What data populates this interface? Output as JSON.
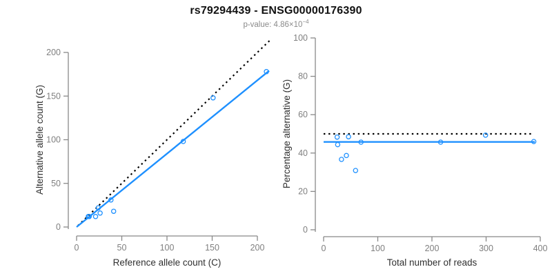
{
  "header": {
    "title": "rs79294439 - ENSG00000176390",
    "subtitle_main": "p-value: 4.86×10",
    "subtitle_exp": "−4"
  },
  "colors": {
    "accent_blue": "#1E90FF",
    "identity_black": "#000000",
    "axis_gray": "#888888",
    "tick_label_gray": "#7f7f7f",
    "axis_title_dark": "#303030",
    "title_black": "#111111",
    "subtitle_gray": "#8a8a8a"
  },
  "chart_data": [
    {
      "type": "scatter",
      "name": "allele-counts-scatter",
      "xlabel": "Reference allele count (C)",
      "ylabel": "Alternative allele count (G)",
      "xlim": [
        0,
        200
      ],
      "ylim": [
        0,
        200
      ],
      "xticks": [
        0,
        50,
        100,
        150,
        200
      ],
      "yticks": [
        0,
        50,
        100,
        150,
        200
      ],
      "grid": false,
      "legend": "none",
      "marker": {
        "shape": "open-circle",
        "color": "#1E90FF"
      },
      "points": [
        [
          13,
          12
        ],
        [
          14,
          12
        ],
        [
          21,
          12
        ],
        [
          24,
          22
        ],
        [
          26,
          16
        ],
        [
          38,
          31
        ],
        [
          41,
          18
        ],
        [
          118,
          98
        ],
        [
          151,
          148
        ],
        [
          210,
          178
        ]
      ],
      "lines": [
        {
          "label": "identity-line",
          "dash": "dotted",
          "color": "#000000",
          "from": [
            1.5,
            1.5
          ],
          "to": [
            214,
            214
          ]
        },
        {
          "label": "regression-line",
          "dash": "solid",
          "color": "#1E90FF",
          "from": [
            0,
            0
          ],
          "to": [
            213,
            179
          ]
        }
      ]
    },
    {
      "type": "scatter",
      "name": "percentage-vs-reads-scatter",
      "xlabel": "Total number of reads",
      "ylabel": "Percentage alternative (G)",
      "xlim": [
        0,
        400
      ],
      "ylim": [
        0,
        100
      ],
      "xticks": [
        0,
        100,
        200,
        300,
        400
      ],
      "yticks": [
        0,
        20,
        40,
        60,
        80,
        100
      ],
      "grid": false,
      "legend": "none",
      "marker": {
        "shape": "open-circle",
        "color": "#1E90FF"
      },
      "points": [
        [
          25,
          48.3
        ],
        [
          26,
          44.4
        ],
        [
          33,
          36.7
        ],
        [
          42,
          38.7
        ],
        [
          46,
          48.5
        ],
        [
          59,
          30.9
        ],
        [
          69,
          45.7
        ],
        [
          216,
          45.7
        ],
        [
          299,
          49.3
        ],
        [
          388,
          46
        ]
      ],
      "lines": [
        {
          "label": "expected-50pct-line",
          "dash": "dotted",
          "color": "#000000",
          "from": [
            0,
            50
          ],
          "to": [
            385,
            50
          ]
        },
        {
          "label": "mean-percentage-line",
          "dash": "solid",
          "color": "#1E90FF",
          "from": [
            0,
            45.8
          ],
          "to": [
            390,
            45.8
          ]
        }
      ]
    }
  ]
}
